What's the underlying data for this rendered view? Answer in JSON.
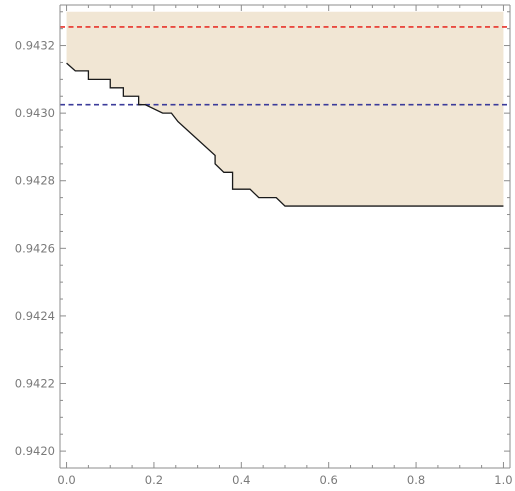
{
  "chart_data": {
    "type": "line",
    "title": "",
    "xlabel": "",
    "ylabel": "",
    "xlim": [
      -0.015,
      1.015
    ],
    "ylim": [
      0.94195,
      0.94332
    ],
    "x_ticks": [
      0.0,
      0.2,
      0.4,
      0.6,
      0.8,
      1.0
    ],
    "x_tick_labels": [
      "0.0",
      "0.2",
      "0.4",
      "0.6",
      "0.8",
      "1.0"
    ],
    "y_ticks": [
      0.942,
      0.9422,
      0.9424,
      0.9426,
      0.9428,
      0.943,
      0.9432
    ],
    "y_tick_labels": [
      "0.9420",
      "0.9422",
      "0.9424",
      "0.9426",
      "0.9428",
      "0.9430",
      "0.9432"
    ],
    "grid": false,
    "legend": "none",
    "colors": {
      "band_fill": "#f1e6d4",
      "curve": "#1a1a1a",
      "upper_reference": "#e8332a",
      "lower_reference": "#3b3b9a",
      "axis": "#8c8c8c",
      "tick_text": "#7a7a7a"
    },
    "reference_lines": [
      {
        "y": 0.943255,
        "style": "dashed",
        "color": "#e8332a"
      },
      {
        "y": 0.943025,
        "style": "dashed",
        "color": "#3b3b9a"
      }
    ],
    "band": {
      "x": [
        0.0,
        1.0
      ],
      "upper": 0.9433,
      "lower_follows": "curve"
    },
    "series": [
      {
        "x": [
          0.0,
          0.02,
          0.02,
          0.05,
          0.05,
          0.1,
          0.1,
          0.13,
          0.13,
          0.165,
          0.165,
          0.18,
          0.18,
          0.22,
          0.24,
          0.255,
          0.34,
          0.34,
          0.36,
          0.36,
          0.38,
          0.38,
          0.42,
          0.44,
          0.44,
          0.48,
          0.5,
          1.0
        ],
        "y": [
          0.943148,
          0.943125,
          0.943125,
          0.943125,
          0.9431,
          0.9431,
          0.943075,
          0.943075,
          0.94305,
          0.94305,
          0.943025,
          0.943025,
          0.943025,
          0.943,
          0.943,
          0.942975,
          0.942875,
          0.94285,
          0.942825,
          0.942825,
          0.942825,
          0.942775,
          0.942775,
          0.94275,
          0.94275,
          0.94275,
          0.942725,
          0.942725
        ]
      }
    ]
  }
}
